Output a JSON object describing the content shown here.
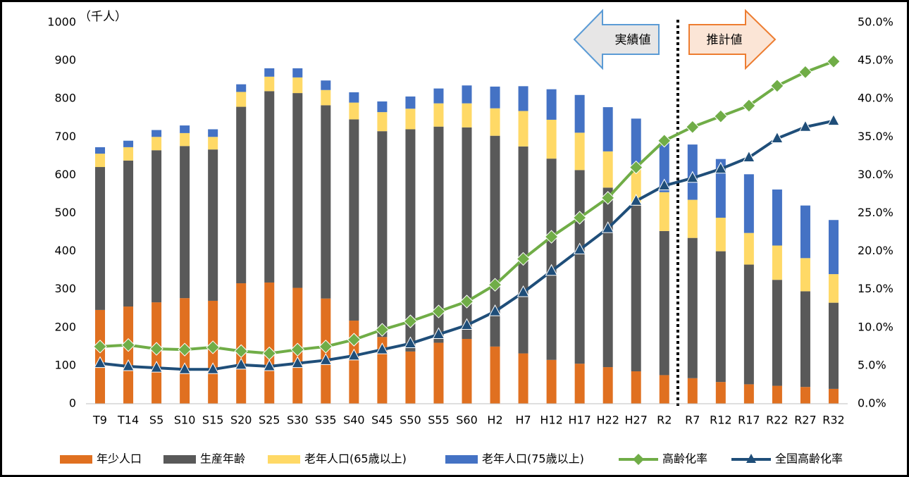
{
  "chart_data": {
    "type": "bar",
    "stacked": true,
    "y_unit_label": "（千人）",
    "annotations": [
      "実績値",
      "推計値"
    ],
    "categories": [
      "T9",
      "T14",
      "S5",
      "S10",
      "S15",
      "S20",
      "S25",
      "S30",
      "S35",
      "S40",
      "S45",
      "S50",
      "S55",
      "S60",
      "H2",
      "H7",
      "H12",
      "H17",
      "H22",
      "H27",
      "R2",
      "R7",
      "R12",
      "R17",
      "R22",
      "R27",
      "R32"
    ],
    "series": [
      {
        "name": "年少人口",
        "type": "bar",
        "color": "#e07020",
        "values": [
          246,
          255,
          266,
          277,
          270,
          316,
          318,
          304,
          276,
          218,
          175,
          137,
          160,
          170,
          150,
          132,
          115,
          105,
          96,
          85,
          75,
          67,
          57,
          51,
          47,
          44,
          39
        ]
      },
      {
        "name": "生産年齢",
        "type": "bar",
        "color": "#595959",
        "values": [
          375,
          383,
          399,
          399,
          397,
          463,
          502,
          511,
          507,
          528,
          540,
          583,
          567,
          555,
          553,
          543,
          528,
          508,
          471,
          435,
          378,
          368,
          343,
          314,
          278,
          251,
          226
        ]
      },
      {
        "name": "老年人口(65歳以上)",
        "type": "bar",
        "color": "#ffd966",
        "values": [
          35,
          35,
          35,
          34,
          33,
          39,
          38,
          41,
          40,
          44,
          50,
          54,
          61,
          63,
          72,
          93,
          102,
          98,
          95,
          102,
          102,
          100,
          88,
          83,
          90,
          87,
          75
        ]
      },
      {
        "name": "老年人口(75歳以上)",
        "type": "bar",
        "color": "#4472c4",
        "values": [
          17,
          17,
          18,
          20,
          20,
          20,
          22,
          24,
          25,
          27,
          28,
          32,
          39,
          47,
          57,
          65,
          80,
          99,
          116,
          126,
          140,
          145,
          154,
          154,
          147,
          138,
          142
        ]
      },
      {
        "name": "高齢化率",
        "type": "line",
        "axis": "y2",
        "marker": "diamond",
        "color": "#70ad47",
        "values": [
          7.5,
          7.7,
          7.2,
          7.1,
          7.4,
          6.9,
          6.6,
          7.1,
          7.5,
          8.4,
          9.7,
          10.8,
          12.1,
          13.4,
          15.6,
          19.0,
          21.9,
          24.4,
          27.0,
          31.0,
          34.5,
          36.3,
          37.7,
          39.1,
          41.7,
          43.5,
          44.9
        ]
      },
      {
        "name": "全国高齢化率",
        "type": "line",
        "axis": "y2",
        "marker": "triangle",
        "color": "#1f4e79",
        "values": [
          5.3,
          4.9,
          4.7,
          4.5,
          4.5,
          5.1,
          4.9,
          5.3,
          5.7,
          6.3,
          7.1,
          7.9,
          9.1,
          10.3,
          12.1,
          14.6,
          17.4,
          20.2,
          23.0,
          26.6,
          28.6,
          29.6,
          30.8,
          32.3,
          34.8,
          36.3,
          37.1
        ]
      }
    ],
    "ylim": [
      0,
      1000
    ],
    "yticks": [
      0,
      100,
      200,
      300,
      400,
      500,
      600,
      700,
      800,
      900,
      1000
    ],
    "y2lim": [
      0,
      50
    ],
    "y2ticks": [
      {
        "value": 0,
        "label": "0.0%"
      },
      {
        "value": 5,
        "label": "5.0%"
      },
      {
        "value": 10,
        "label": "10.0%"
      },
      {
        "value": 15,
        "label": "15.0%"
      },
      {
        "value": 20,
        "label": "20.0%"
      },
      {
        "value": 25,
        "label": "25.0%"
      },
      {
        "value": 30,
        "label": "30.0%"
      },
      {
        "value": 35,
        "label": "35.0%"
      },
      {
        "value": 40,
        "label": "40.0%"
      },
      {
        "value": 45,
        "label": "45.0%"
      },
      {
        "value": 50,
        "label": "50.0%"
      }
    ],
    "grid": false,
    "legend": "bottom"
  }
}
